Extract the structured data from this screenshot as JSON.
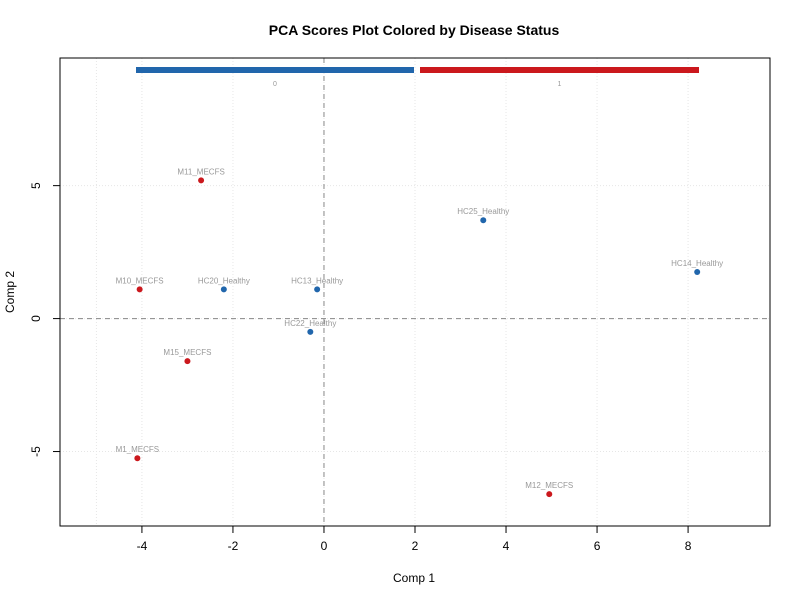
{
  "chart_data": {
    "type": "scatter",
    "title": "PCA Scores Plot Colored by Disease Status",
    "xlabel": "Comp 1",
    "ylabel": "Comp 2",
    "xlim": [
      -5.8,
      9.8
    ],
    "ylim": [
      -7.8,
      9.8
    ],
    "xticks": [
      -4,
      -2,
      0,
      2,
      4,
      6,
      8
    ],
    "yticks": [
      -5,
      0,
      5
    ],
    "grid": true,
    "reference_lines": {
      "x": 0,
      "y": 0
    },
    "legend": {
      "placement": "top",
      "entries": [
        {
          "label": "0",
          "color": "#2166ac"
        },
        {
          "label": "1",
          "color": "#cb181d"
        }
      ]
    },
    "series": [
      {
        "color": "#2166ac",
        "points": [
          {
            "label": "HC25_Healthy",
            "x": 3.5,
            "y": 3.7
          },
          {
            "label": "HC14_Healthy",
            "x": 8.2,
            "y": 1.75
          },
          {
            "label": "HC20_Healthy",
            "x": -2.2,
            "y": 1.1
          },
          {
            "label": "HC13_Healthy",
            "x": -0.15,
            "y": 1.1
          },
          {
            "label": "HC22_Healthy",
            "x": -0.3,
            "y": -0.5
          }
        ]
      },
      {
        "color": "#cb181d",
        "points": [
          {
            "label": "M11_MECFS",
            "x": -2.7,
            "y": 5.2
          },
          {
            "label": "M10_MECFS",
            "x": -4.05,
            "y": 1.1
          },
          {
            "label": "M15_MECFS",
            "x": -3.0,
            "y": -1.6
          },
          {
            "label": "M1_MECFS",
            "x": -4.1,
            "y": -5.25
          },
          {
            "label": "M12_MECFS",
            "x": 4.95,
            "y": -6.6
          }
        ]
      }
    ]
  }
}
